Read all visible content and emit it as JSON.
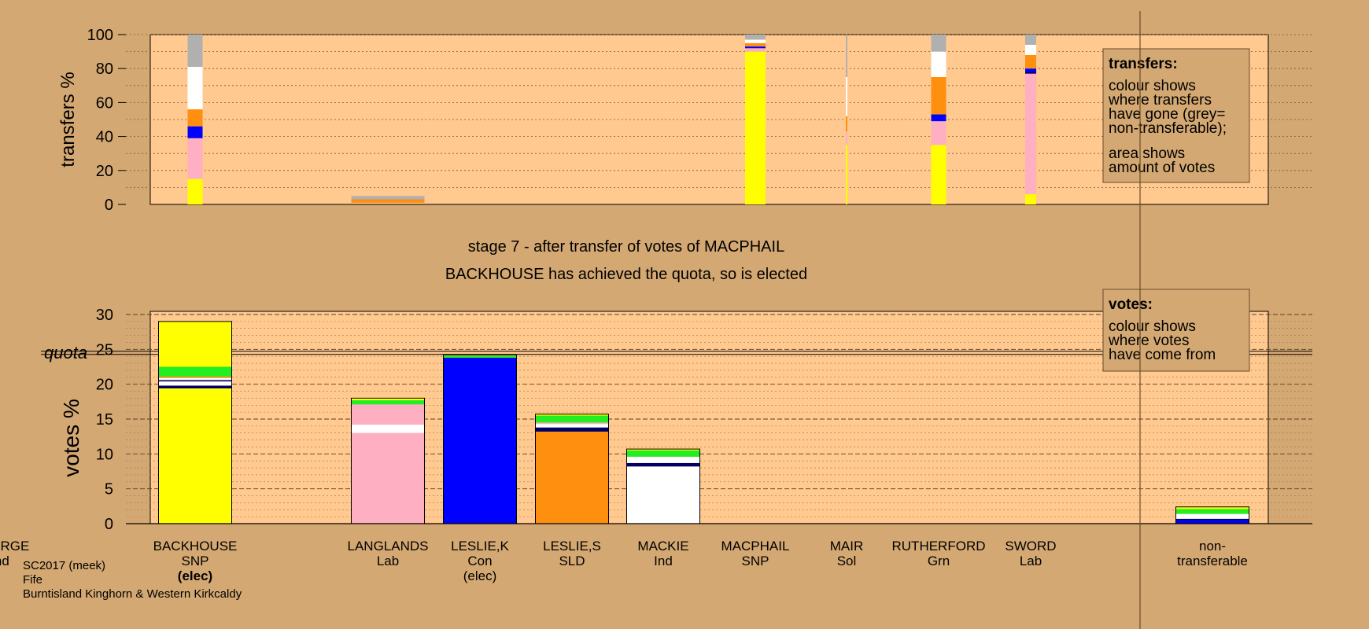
{
  "colors": {
    "background": "#d4a872",
    "plot_area": "#ffc98f",
    "SNP": "#ffff00",
    "Ind": "#ffffff",
    "Lab": "#ffafc2",
    "Con": "#0000ff",
    "SLD": "#ff8f0f",
    "Grn": "#22ee22",
    "Sol": "#ff3333",
    "MACKIE": "#ffffff",
    "nontransferable": "#b0b0b0",
    "navy": "#000066"
  },
  "stage_title": "stage 7 - after transfer of votes of MACPHAIL",
  "stage_subtitle": "BACKHOUSE has achieved the quota, so is elected",
  "footer": {
    "line1": "SC2017 (meek)",
    "line2": "Fife",
    "line3": "Burntisland Kinghorn & Western Kirkcaldy"
  },
  "legend_transfers": {
    "title": "transfers:",
    "lines": [
      "colour shows",
      "where transfers",
      "have gone (grey=",
      "non-transferable);",
      "area shows",
      "amount of votes"
    ]
  },
  "legend_votes": {
    "title": "votes:",
    "lines": [
      "colour shows",
      "where votes",
      "have come from"
    ]
  },
  "chart_data": [
    {
      "type": "bar",
      "title": "",
      "ylabel": "transfers %",
      "ylim": [
        0,
        100
      ],
      "yticks": [
        "0",
        "20",
        "40",
        "60",
        "80",
        "100"
      ],
      "categories": [
        "BACKHOUSE",
        "GEORGE",
        "LANGLANDS",
        "LESLIE,K",
        "LESLIE,S",
        "MACKIE",
        "MACPHAIL",
        "MAIR",
        "RUTHERFORD",
        "SWORD"
      ],
      "note": "stacked columns; width proportional to votes transferred",
      "stacks": [
        {
          "from": "BACKHOUSE",
          "width": "narrow",
          "segments": [
            {
              "to": "SNP",
              "color": "#ffff00",
              "y0": 0,
              "y1": 15
            },
            {
              "to": "Lab",
              "color": "#ffafc2",
              "y0": 15,
              "y1": 39
            },
            {
              "to": "Con",
              "color": "#0000ff",
              "y0": 39,
              "y1": 46
            },
            {
              "to": "SLD",
              "color": "#ff8f0f",
              "y0": 46,
              "y1": 56
            },
            {
              "to": "Ind",
              "color": "#ffffff",
              "y0": 56,
              "y1": 81
            },
            {
              "to": "non-transferable",
              "color": "#b0b0b0",
              "y0": 81,
              "y1": 100
            }
          ]
        },
        {
          "from": "LANGLANDS",
          "width": "wide",
          "segments": [
            {
              "to": "SLD",
              "color": "#ff8f0f",
              "y0": 1,
              "y1": 3
            },
            {
              "to": "non-transferable",
              "color": "#b0b0b0",
              "y0": 3,
              "y1": 5
            }
          ]
        },
        {
          "from": "MACPHAIL",
          "width": "medium",
          "segments": [
            {
              "to": "SNP",
              "color": "#ffff00",
              "y0": 0,
              "y1": 90
            },
            {
              "to": "Lab",
              "color": "#ffafc2",
              "y0": 90,
              "y1": 92
            },
            {
              "to": "Con",
              "color": "#0000ff",
              "y0": 92,
              "y1": 93
            },
            {
              "to": "SLD",
              "color": "#ff8f0f",
              "y0": 93,
              "y1": 95
            },
            {
              "to": "Ind",
              "color": "#ffffff",
              "y0": 95,
              "y1": 97
            },
            {
              "to": "non-transferable",
              "color": "#b0b0b0",
              "y0": 97,
              "y1": 100
            }
          ]
        },
        {
          "from": "MAIR",
          "width": "hairline",
          "segments": [
            {
              "to": "SNP",
              "color": "#ffff00",
              "y0": 0,
              "y1": 35
            },
            {
              "to": "Lab",
              "color": "#ffafc2",
              "y0": 35,
              "y1": 43
            },
            {
              "to": "SLD",
              "color": "#ff8f0f",
              "y0": 43,
              "y1": 52
            },
            {
              "to": "Ind",
              "color": "#ffffff",
              "y0": 52,
              "y1": 75
            },
            {
              "to": "non-transferable",
              "color": "#b0b0b0",
              "y0": 75,
              "y1": 100
            }
          ]
        },
        {
          "from": "RUTHERFORD",
          "width": "narrow",
          "segments": [
            {
              "to": "SNP",
              "color": "#ffff00",
              "y0": 0,
              "y1": 35
            },
            {
              "to": "Lab",
              "color": "#ffafc2",
              "y0": 35,
              "y1": 49
            },
            {
              "to": "Con",
              "color": "#0000ff",
              "y0": 49,
              "y1": 53
            },
            {
              "to": "SLD",
              "color": "#ff8f0f",
              "y0": 53,
              "y1": 75
            },
            {
              "to": "Ind",
              "color": "#ffffff",
              "y0": 75,
              "y1": 90
            },
            {
              "to": "non-transferable",
              "color": "#b0b0b0",
              "y0": 90,
              "y1": 100
            }
          ]
        },
        {
          "from": "SWORD",
          "width": "thin",
          "segments": [
            {
              "to": "SNP",
              "color": "#ffff00",
              "y0": 0,
              "y1": 6
            },
            {
              "to": "Lab",
              "color": "#ffafc2",
              "y0": 6,
              "y1": 77
            },
            {
              "to": "navy",
              "color": "#000066",
              "y0": 77,
              "y1": 78
            },
            {
              "to": "Con",
              "color": "#0000ff",
              "y0": 78,
              "y1": 80
            },
            {
              "to": "SLD",
              "color": "#ff8f0f",
              "y0": 80,
              "y1": 88
            },
            {
              "to": "Ind",
              "color": "#ffffff",
              "y0": 88,
              "y1": 94
            },
            {
              "to": "non-transferable",
              "color": "#b0b0b0",
              "y0": 94,
              "y1": 100
            }
          ]
        }
      ]
    },
    {
      "type": "bar",
      "title": "",
      "ylabel": "votes %",
      "ylim": [
        0,
        30
      ],
      "yticks": [
        "0",
        "5",
        "10",
        "15",
        "20",
        "25",
        "30"
      ],
      "quota": 24.5,
      "quota_label": "quota",
      "categories": [
        {
          "name": "BACKHOUSE",
          "party": "SNP",
          "status": "(elec)"
        },
        {
          "name": "GEORGE",
          "party": "Ind",
          "status": ""
        },
        {
          "name": "LANGLANDS",
          "party": "Lab",
          "status": ""
        },
        {
          "name": "LESLIE,K",
          "party": "Con",
          "status": "(elec)"
        },
        {
          "name": "LESLIE,S",
          "party": "SLD",
          "status": ""
        },
        {
          "name": "MACKIE",
          "party": "Ind",
          "status": ""
        },
        {
          "name": "MACPHAIL",
          "party": "SNP",
          "status": ""
        },
        {
          "name": "MAIR",
          "party": "Sol",
          "status": ""
        },
        {
          "name": "RUTHERFORD",
          "party": "Grn",
          "status": ""
        },
        {
          "name": "SWORD",
          "party": "Lab",
          "status": ""
        },
        {
          "name": "non-\ntransferable",
          "party": "",
          "status": ""
        }
      ],
      "stacks": [
        {
          "candidate": "BACKHOUSE",
          "segments": [
            {
              "from": "SNP",
              "color": "#ffff00",
              "value": 19.4
            },
            {
              "from": "navy",
              "color": "#000066",
              "value": 0.4
            },
            {
              "from": "Ind",
              "color": "#ffffff",
              "value": 0.6
            },
            {
              "from": "navy",
              "color": "#000066",
              "value": 0.2
            },
            {
              "from": "Ind",
              "color": "#ffffff",
              "value": 0.3
            },
            {
              "from": "SLD",
              "color": "#ff8f0f",
              "value": 0.2
            },
            {
              "from": "Grn",
              "color": "#22ee22",
              "value": 1.4
            },
            {
              "from": "SNP",
              "color": "#ffff00",
              "value": 6.5
            }
          ]
        },
        {
          "candidate": "GEORGE",
          "segments": []
        },
        {
          "candidate": "LANGLANDS",
          "segments": [
            {
              "from": "Lab",
              "color": "#ffafc2",
              "value": 13.0
            },
            {
              "from": "Ind",
              "color": "#ffffff",
              "value": 1.2
            },
            {
              "from": "Lab",
              "color": "#ffafc2",
              "value": 2.9
            },
            {
              "from": "Grn",
              "color": "#22ee22",
              "value": 0.6
            },
            {
              "from": "SNP",
              "color": "#ffff00",
              "value": 0.3
            }
          ]
        },
        {
          "candidate": "LESLIE,K",
          "segments": [
            {
              "from": "Con",
              "color": "#0000ff",
              "value": 23.8
            },
            {
              "from": "Grn",
              "color": "#22ee22",
              "value": 0.3
            },
            {
              "from": "SNP",
              "color": "#ffff00",
              "value": 0.1
            }
          ]
        },
        {
          "candidate": "LESLIE,S",
          "segments": [
            {
              "from": "SLD",
              "color": "#ff8f0f",
              "value": 13.2
            },
            {
              "from": "navy",
              "color": "#000066",
              "value": 0.6
            },
            {
              "from": "Ind",
              "color": "#ffffff",
              "value": 0.5
            },
            {
              "from": "Lab",
              "color": "#ffafc2",
              "value": 0.2
            },
            {
              "from": "Grn",
              "color": "#22ee22",
              "value": 1.0
            },
            {
              "from": "SNP",
              "color": "#ffff00",
              "value": 0.2
            }
          ]
        },
        {
          "candidate": "MACKIE",
          "segments": [
            {
              "from": "Ind",
              "color": "#ffffff",
              "value": 8.2
            },
            {
              "from": "navy",
              "color": "#000066",
              "value": 0.5
            },
            {
              "from": "Ind",
              "color": "#ffffff",
              "value": 0.9
            },
            {
              "from": "Grn",
              "color": "#22ee22",
              "value": 0.9
            },
            {
              "from": "SNP",
              "color": "#ffff00",
              "value": 0.2
            }
          ]
        },
        {
          "candidate": "MACPHAIL",
          "segments": []
        },
        {
          "candidate": "MAIR",
          "segments": []
        },
        {
          "candidate": "RUTHERFORD",
          "segments": []
        },
        {
          "candidate": "SWORD",
          "segments": []
        },
        {
          "candidate": "non-transferable",
          "segments": [
            {
              "from": "Con",
              "color": "#0000ff",
              "value": 0.5
            },
            {
              "from": "navy",
              "color": "#000066",
              "value": 0.2
            },
            {
              "from": "Ind",
              "color": "#ffffff",
              "value": 0.7
            },
            {
              "from": "Grn",
              "color": "#22ee22",
              "value": 0.7
            },
            {
              "from": "SNP",
              "color": "#ffff00",
              "value": 0.3
            }
          ]
        }
      ]
    }
  ]
}
